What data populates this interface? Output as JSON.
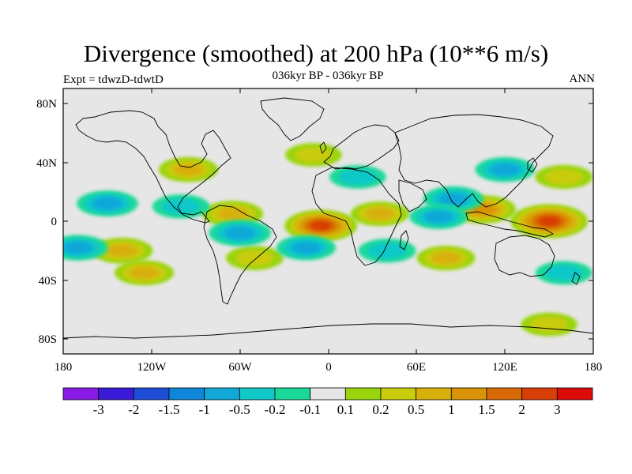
{
  "title": "Divergence (smoothed) at 200 hPa (10**6 m/s)",
  "subtitle_left": "Expt = tdwzD-tdwtD",
  "subtitle_center": "036kyr BP - 036kyr BP",
  "subtitle_right": "ANN",
  "lat_labels": [
    "80N",
    "40N",
    "0",
    "40S",
    "80S"
  ],
  "lon_labels": [
    "180",
    "120W",
    "60W",
    "0",
    "60E",
    "120E",
    "180"
  ],
  "colorbar": {
    "colors": [
      "#8a1ae6",
      "#3a1ad6",
      "#1e4ed8",
      "#0f86d8",
      "#11a8d8",
      "#10c8c8",
      "#1ad89a",
      "#e6e6e6",
      "#9ad40c",
      "#c8cc0a",
      "#d8b00a",
      "#d89406",
      "#d86a06",
      "#d83e06",
      "#dd0a0a"
    ],
    "labels": [
      "-3",
      "-2",
      "-1.5",
      "-1",
      "-0.5",
      "-0.2",
      "-0.1",
      "0.1",
      "0.2",
      "0.5",
      "1",
      "1.5",
      "2",
      "3"
    ]
  },
  "chart_data": {
    "type": "heatmap",
    "title": "Divergence (smoothed) at 200 hPa (10**6 m/s)",
    "subtitle": "036kyr BP - 036kyr BP",
    "experiment": "Expt = tdwzD-tdwtD",
    "season": "ANN",
    "x_range": [
      -180,
      180
    ],
    "y_range": [
      -90,
      90
    ],
    "x_ticks": [
      "180",
      "120W",
      "60W",
      "0",
      "60E",
      "120E",
      "180"
    ],
    "y_ticks": [
      "80N",
      "40N",
      "0",
      "40S",
      "80S"
    ],
    "levels": [
      -3,
      -2,
      -1.5,
      -1,
      -0.5,
      -0.2,
      -0.1,
      0.1,
      0.2,
      0.5,
      1,
      1.5,
      2,
      3
    ],
    "features": [
      {
        "lon": 150,
        "lat": 0,
        "value": 2.5
      },
      {
        "lon": -5,
        "lat": -3,
        "value": 2.0
      },
      {
        "lon": 105,
        "lat": 8,
        "value": 1.3
      },
      {
        "lon": -140,
        "lat": -20,
        "value": 0.8
      },
      {
        "lon": -65,
        "lat": 5,
        "value": 0.8
      },
      {
        "lon": -125,
        "lat": -35,
        "value": 0.6
      },
      {
        "lon": -95,
        "lat": 35,
        "value": 0.6
      },
      {
        "lon": 80,
        "lat": -25,
        "value": 0.5
      },
      {
        "lon": 160,
        "lat": 30,
        "value": 0.4
      },
      {
        "lon": -10,
        "lat": 45,
        "value": 0.3
      },
      {
        "lon": 35,
        "lat": 5,
        "value": 0.5
      },
      {
        "lon": -50,
        "lat": -25,
        "value": 0.4
      },
      {
        "lon": 150,
        "lat": -70,
        "value": 0.3
      },
      {
        "lon": -150,
        "lat": 12,
        "value": -0.8
      },
      {
        "lon": -170,
        "lat": -18,
        "value": -0.7
      },
      {
        "lon": -60,
        "lat": -8,
        "value": -0.9
      },
      {
        "lon": -15,
        "lat": -18,
        "value": -0.6
      },
      {
        "lon": 85,
        "lat": 15,
        "value": -0.7
      },
      {
        "lon": 120,
        "lat": 35,
        "value": -0.6
      },
      {
        "lon": 75,
        "lat": 3,
        "value": -0.5
      },
      {
        "lon": 40,
        "lat": -20,
        "value": -0.4
      },
      {
        "lon": 20,
        "lat": 30,
        "value": -0.3
      },
      {
        "lon": -100,
        "lat": 10,
        "value": -0.4
      },
      {
        "lon": 160,
        "lat": -35,
        "value": -0.3
      }
    ]
  }
}
